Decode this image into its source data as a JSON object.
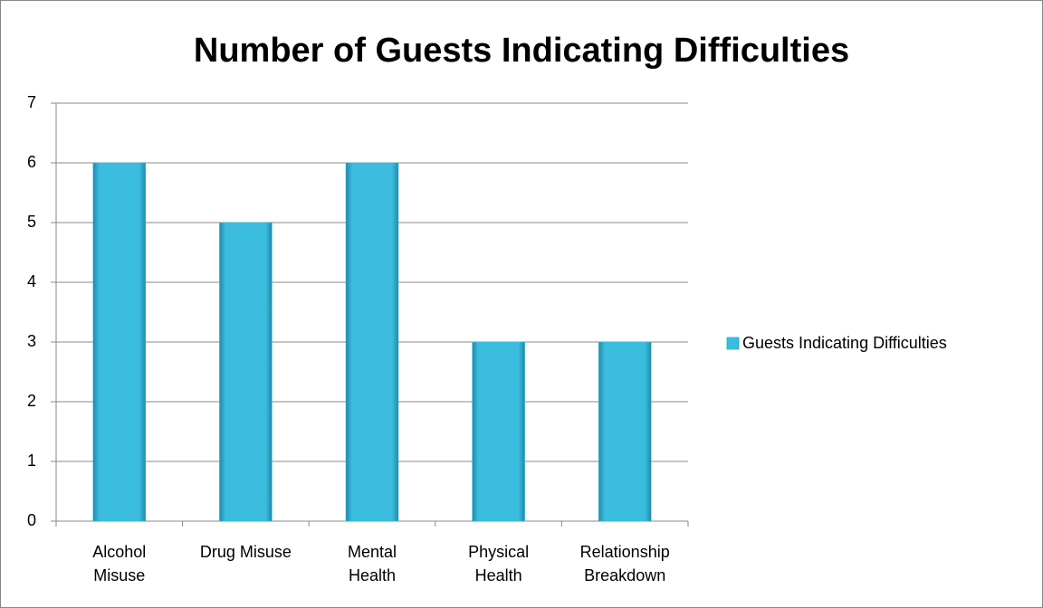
{
  "chart_data": {
    "type": "bar",
    "title": "Number of Guests Indicating Difficulties",
    "categories": [
      "Alcohol\nMisuse",
      "Drug Misuse",
      "Mental\nHealth",
      "Physical\nHealth",
      "Relationship\nBreakdown"
    ],
    "series": [
      {
        "name": "Guests Indicating Difficulties",
        "color": "#3bbde0",
        "values": [
          6,
          5,
          6,
          3,
          3
        ]
      }
    ],
    "ylim": [
      0,
      7
    ],
    "yticks": [
      0,
      1,
      2,
      3,
      4,
      5,
      6,
      7
    ],
    "grid": true,
    "legend": "right"
  }
}
